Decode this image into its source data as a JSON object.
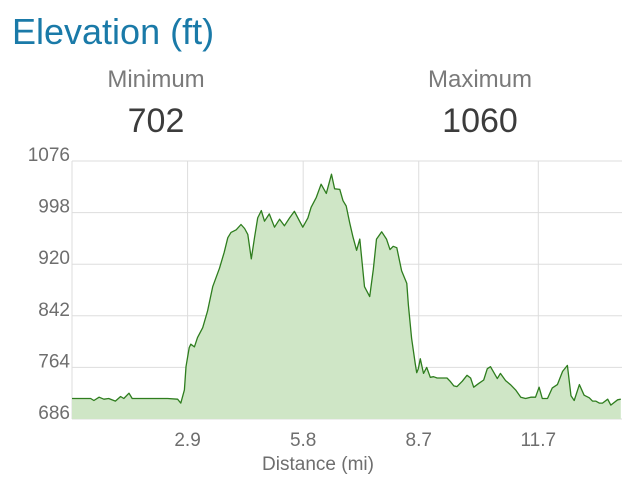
{
  "header": {
    "title": "Elevation (ft)"
  },
  "stats": {
    "minimum": {
      "label": "Minimum",
      "value": "702"
    },
    "maximum": {
      "label": "Maximum",
      "value": "1060"
    }
  },
  "colors": {
    "title": "#1a7aa8",
    "line": "#2e7d1e",
    "fill": "#cfe6c6",
    "grid": "#dddddd"
  },
  "chart_data": {
    "type": "area",
    "xlabel": "Distance (mi)",
    "ylabel": "",
    "xlim": [
      0,
      13.8
    ],
    "ylim": [
      686,
      1076
    ],
    "x_ticks": [
      {
        "value": 2.9,
        "label": "2.9"
      },
      {
        "value": 5.8,
        "label": "5.8"
      },
      {
        "value": 8.7,
        "label": "8.7"
      },
      {
        "value": 11.7,
        "label": "11.7"
      }
    ],
    "y_ticks": [
      {
        "value": 1076,
        "label": "1076"
      },
      {
        "value": 998,
        "label": "998"
      },
      {
        "value": 920,
        "label": "920"
      },
      {
        "value": 842,
        "label": "842"
      },
      {
        "value": 764,
        "label": "764"
      },
      {
        "value": 686,
        "label": "686"
      }
    ],
    "grid": true,
    "series": [
      {
        "x": [
          0.0,
          0.47,
          0.55,
          0.68,
          0.8,
          0.92,
          1.09,
          1.22,
          1.3,
          1.43,
          1.51,
          1.6,
          1.68,
          1.9,
          2.15,
          2.4,
          2.65,
          2.73,
          2.82,
          2.86,
          2.94,
          2.98,
          3.07,
          3.15,
          3.28,
          3.4,
          3.53,
          3.7,
          3.82,
          3.91,
          3.99,
          4.12,
          4.24,
          4.33,
          4.41,
          4.5,
          4.58,
          4.66,
          4.75,
          4.83,
          4.95,
          5.08,
          5.21,
          5.33,
          5.46,
          5.58,
          5.71,
          5.79,
          5.92,
          6.0,
          6.13,
          6.25,
          6.38,
          6.51,
          6.59,
          6.72,
          6.8,
          6.88,
          6.97,
          7.05,
          7.14,
          7.22,
          7.34,
          7.47,
          7.56,
          7.64,
          7.77,
          7.89,
          7.98,
          8.06,
          8.15,
          8.27,
          8.4,
          8.44,
          8.52,
          8.61,
          8.65,
          8.69,
          8.74,
          8.82,
          8.9,
          8.99,
          9.07,
          9.16,
          9.28,
          9.41,
          9.49,
          9.58,
          9.66,
          9.79,
          9.91,
          10.0,
          10.08,
          10.21,
          10.33,
          10.42,
          10.5,
          10.67,
          10.75,
          10.88,
          11.0,
          11.13,
          11.26,
          11.38,
          11.51,
          11.63,
          11.72,
          11.8,
          11.93,
          12.05,
          12.18,
          12.31,
          12.43,
          12.52,
          12.6,
          12.73,
          12.85,
          12.98,
          13.06,
          13.14,
          13.23,
          13.31,
          13.44,
          13.52,
          13.69,
          13.77
        ],
        "y": [
          717,
          717,
          714,
          719,
          716,
          717,
          713,
          720,
          717,
          725,
          717,
          717,
          717,
          717,
          717,
          717,
          716,
          710,
          730,
          765,
          794,
          799,
          795,
          809,
          824,
          849,
          886,
          914,
          938,
          960,
          968,
          972,
          980,
          974,
          965,
          928,
          960,
          990,
          1001,
          985,
          996,
          976,
          988,
          978,
          990,
          1000,
          985,
          976,
          990,
          1006,
          1021,
          1041,
          1027,
          1056,
          1034,
          1033,
          1016,
          1008,
          982,
          961,
          941,
          958,
          886,
          871,
          912,
          958,
          969,
          958,
          942,
          947,
          945,
          910,
          891,
          858,
          808,
          770,
          756,
          762,
          777,
          755,
          764,
          749,
          750,
          748,
          748,
          748,
          743,
          736,
          735,
          743,
          752,
          748,
          734,
          740,
          745,
          762,
          765,
          747,
          755,
          744,
          738,
          730,
          719,
          717,
          719,
          719,
          734,
          717,
          717,
          733,
          738,
          758,
          767,
          721,
          714,
          738,
          722,
          718,
          713,
          713,
          710,
          710,
          716,
          707,
          715,
          716
        ]
      }
    ]
  }
}
